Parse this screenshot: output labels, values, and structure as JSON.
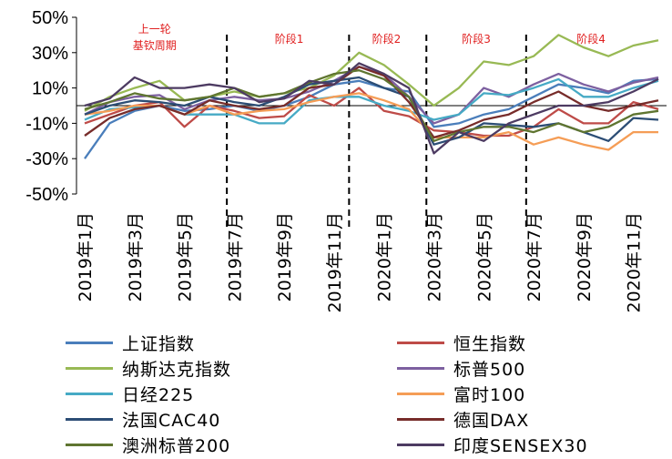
{
  "chart_data": {
    "type": "line",
    "title": "",
    "xlabel": "",
    "ylabel": "",
    "ylim": [
      -50,
      50
    ],
    "y_ticks": [
      "50%",
      "30%",
      "10%",
      "-10%",
      "-30%",
      "-50%"
    ],
    "y_tick_values": [
      50,
      30,
      10,
      -10,
      -30,
      -50
    ],
    "x_tick_labels": [
      "2019年1月",
      "2019年3月",
      "2019年5月",
      "2019年7月",
      "2019年9月",
      "2019年11月",
      "2020年1月",
      "2020年3月",
      "2020年5月",
      "2020年7月",
      "2020年9月",
      "2020年11月"
    ],
    "x_tick_indices": [
      0,
      2,
      4,
      6,
      8,
      10,
      12,
      14,
      16,
      18,
      20,
      22
    ],
    "x": [
      "2019-01",
      "2019-02",
      "2019-03",
      "2019-04",
      "2019-05",
      "2019-06",
      "2019-07",
      "2019-08",
      "2019-09",
      "2019-10",
      "2019-11",
      "2019-12",
      "2020-01",
      "2020-02",
      "2020-03",
      "2020-04",
      "2020-05",
      "2020-06",
      "2020-07",
      "2020-08",
      "2020-09",
      "2020-10",
      "2020-11",
      "2020-12"
    ],
    "phase_dividers": [
      5.7,
      10.6,
      13.7,
      17.7
    ],
    "phase_labels": [
      {
        "text": "上一轮\n基钦周期",
        "x": 2.8
      },
      {
        "text": "阶段1",
        "x": 8.2
      },
      {
        "text": "阶段2",
        "x": 12.1
      },
      {
        "text": "阶段3",
        "x": 15.7
      },
      {
        "text": "阶段4",
        "x": 20.3
      }
    ],
    "series": [
      {
        "name": "上证指数",
        "color": "#4a7ebb",
        "values": [
          -30,
          -10,
          -3,
          0,
          -3,
          -2,
          0,
          -3,
          0,
          5,
          12,
          14,
          10,
          8,
          -12,
          -10,
          -5,
          -2,
          5,
          12,
          10,
          7,
          14,
          15
        ]
      },
      {
        "name": "恒生指数",
        "color": "#be4b48",
        "values": [
          -10,
          -5,
          0,
          2,
          -12,
          0,
          -3,
          -7,
          -6,
          6,
          0,
          10,
          -3,
          -6,
          -14,
          -15,
          -17,
          -17,
          -12,
          -2,
          -10,
          -10,
          2,
          -2
        ]
      },
      {
        "name": "纳斯达克指数",
        "color": "#98b954",
        "values": [
          -3,
          5,
          10,
          14,
          3,
          5,
          8,
          5,
          7,
          10,
          17,
          30,
          23,
          12,
          0,
          10,
          25,
          23,
          28,
          40,
          33,
          28,
          34,
          37
        ]
      },
      {
        "name": "标普500",
        "color": "#7d60a0",
        "values": [
          -5,
          2,
          5,
          6,
          -2,
          3,
          5,
          3,
          4,
          8,
          14,
          22,
          18,
          5,
          -10,
          -5,
          10,
          5,
          12,
          18,
          12,
          8,
          13,
          16
        ]
      },
      {
        "name": "日经225",
        "color": "#46aac5",
        "values": [
          -8,
          -2,
          -1,
          0,
          -5,
          -5,
          -5,
          -10,
          -10,
          3,
          5,
          5,
          0,
          -3,
          -8,
          -5,
          7,
          6,
          10,
          15,
          5,
          5,
          10,
          14
        ]
      },
      {
        "name": "富时100",
        "color": "#f59d56",
        "values": [
          -5,
          -3,
          0,
          0,
          -5,
          0,
          -5,
          -3,
          -2,
          2,
          5,
          7,
          3,
          -2,
          -18,
          -18,
          -18,
          -15,
          -22,
          -18,
          -22,
          -25,
          -15,
          -15
        ]
      },
      {
        "name": "法国CAC40",
        "color": "#2c4d75",
        "values": [
          -5,
          0,
          3,
          2,
          0,
          5,
          2,
          0,
          5,
          12,
          14,
          16,
          10,
          5,
          -22,
          -18,
          -10,
          -11,
          -12,
          -10,
          -15,
          -20,
          -7,
          -8
        ]
      },
      {
        "name": "德国DAX",
        "color": "#772c2a",
        "values": [
          -17,
          -7,
          -2,
          0,
          -5,
          3,
          0,
          -2,
          0,
          10,
          12,
          22,
          17,
          2,
          -18,
          -14,
          -8,
          -5,
          2,
          8,
          0,
          -3,
          0,
          3
        ]
      },
      {
        "name": "澳洲标普200",
        "color": "#5f7530",
        "values": [
          -2,
          2,
          7,
          4,
          3,
          5,
          10,
          5,
          7,
          13,
          18,
          20,
          15,
          5,
          -20,
          -15,
          -12,
          -12,
          -15,
          -10,
          -15,
          -12,
          -5,
          -3
        ]
      },
      {
        "name": "印度SENSEX30",
        "color": "#4d3b62",
        "values": [
          0,
          4,
          16,
          10,
          10,
          12,
          10,
          2,
          4,
          14,
          12,
          24,
          18,
          10,
          -27,
          -15,
          -20,
          -10,
          -5,
          0,
          0,
          2,
          8,
          15
        ]
      }
    ]
  }
}
